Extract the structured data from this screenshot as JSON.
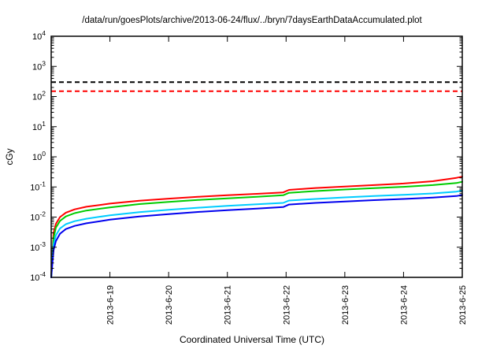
{
  "chart_data": {
    "type": "line",
    "title": "/data/run/goesPlots/archive/2013-06-24/flux/../bryn/7daysEarthDataAccumulated.plot",
    "xlabel": "Coordinated Universal Time (UTC)",
    "ylabel": "cGy",
    "y_scale": "log",
    "ylim_exponents": [
      -4,
      4
    ],
    "xlim": [
      0,
      7
    ],
    "grid": "off",
    "legend": "none",
    "x_ticks": [
      {
        "x": 1,
        "label": "2013-6-19"
      },
      {
        "x": 2,
        "label": "2013-6-20"
      },
      {
        "x": 3,
        "label": "2013-6-21"
      },
      {
        "x": 4,
        "label": "2013-6-22"
      },
      {
        "x": 5,
        "label": "2013-6-23"
      },
      {
        "x": 6,
        "label": "2013-6-24"
      },
      {
        "x": 7,
        "label": "2013-6-25"
      }
    ],
    "thresholds": [
      {
        "name": "threshold-line-black",
        "value": 300,
        "color": "#000000",
        "style": "dashed"
      },
      {
        "name": "threshold-line-red",
        "value": 150,
        "color": "#ff0000",
        "style": "dashed"
      }
    ],
    "x": [
      0,
      0.04,
      0.08,
      0.15,
      0.25,
      0.4,
      0.6,
      1.0,
      1.5,
      2.0,
      2.5,
      3.0,
      3.5,
      3.95,
      4.05,
      4.5,
      5.0,
      5.5,
      6.0,
      6.5,
      6.9,
      7.0
    ],
    "series": [
      {
        "name": "red",
        "color": "#ff0000",
        "values": [
          0.0001,
          0.003,
          0.006,
          0.01,
          0.014,
          0.018,
          0.022,
          0.028,
          0.035,
          0.041,
          0.047,
          0.053,
          0.059,
          0.066,
          0.08,
          0.092,
          0.103,
          0.115,
          0.13,
          0.155,
          0.2,
          0.22
        ]
      },
      {
        "name": "green",
        "color": "#00cc00",
        "values": [
          0.0001,
          0.002,
          0.0045,
          0.0075,
          0.0105,
          0.0135,
          0.0165,
          0.021,
          0.027,
          0.032,
          0.037,
          0.042,
          0.047,
          0.053,
          0.064,
          0.073,
          0.082,
          0.091,
          0.101,
          0.115,
          0.135,
          0.148
        ]
      },
      {
        "name": "cyan",
        "color": "#00ccff",
        "values": [
          0.0001,
          0.0012,
          0.0025,
          0.0042,
          0.0058,
          0.0073,
          0.0088,
          0.0115,
          0.0145,
          0.0175,
          0.0205,
          0.0235,
          0.0265,
          0.0295,
          0.0355,
          0.04,
          0.045,
          0.05,
          0.055,
          0.061,
          0.07,
          0.076
        ]
      },
      {
        "name": "blue",
        "color": "#0000ee",
        "values": [
          0.0001,
          0.0008,
          0.0016,
          0.0028,
          0.004,
          0.0051,
          0.0062,
          0.0082,
          0.0105,
          0.0125,
          0.0148,
          0.017,
          0.0192,
          0.0215,
          0.026,
          0.0295,
          0.033,
          0.0365,
          0.04,
          0.0445,
          0.05,
          0.054
        ]
      }
    ]
  }
}
